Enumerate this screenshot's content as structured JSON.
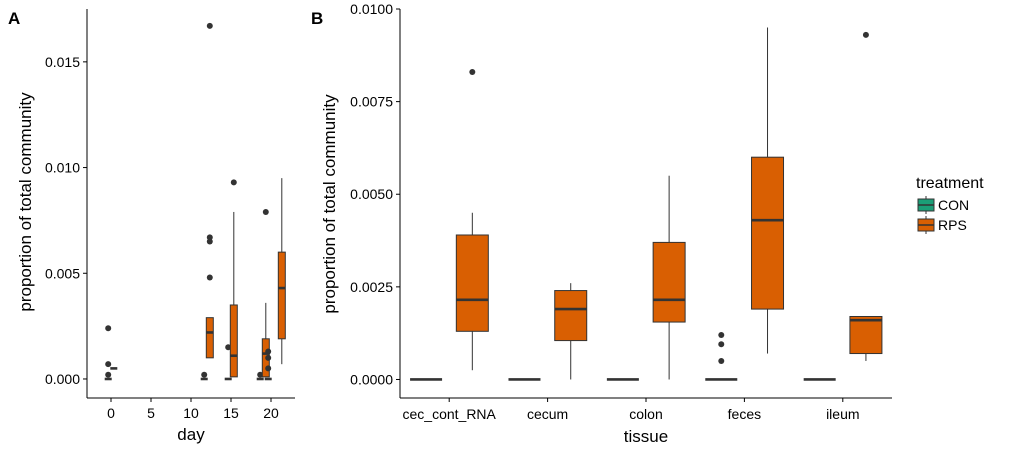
{
  "chart_data": [
    {
      "panel": "A",
      "type": "box",
      "xlabel": "day",
      "ylabel": "proportion of total community",
      "xlim": [
        -3,
        23
      ],
      "ylim": [
        -0.0009,
        0.0175
      ],
      "x_ticks": [
        0,
        5,
        10,
        15,
        20
      ],
      "y_ticks": [
        0.0,
        0.005,
        0.01,
        0.015
      ],
      "y_tick_labels": [
        "0.000",
        "0.005",
        "0.010",
        "0.015"
      ],
      "boxes": [
        {
          "day": 0,
          "treatment": "CON",
          "min": 0,
          "q1": 0,
          "median": 0,
          "q3": 0,
          "max": 0,
          "outliers": [
            0.0024,
            0.0007,
            0.0002
          ]
        },
        {
          "day": 0,
          "treatment": "RPS",
          "min": 0.0005,
          "q1": 0.0005,
          "median": 0.0005,
          "q3": 0.0005,
          "max": 0.0005,
          "outliers": []
        },
        {
          "day": 12,
          "treatment": "CON",
          "min": 0,
          "q1": 0,
          "median": 0,
          "q3": 0,
          "max": 0,
          "outliers": [
            0.0002
          ]
        },
        {
          "day": 12,
          "treatment": "RPS",
          "min": 0.001,
          "q1": 0.001,
          "median": 0.0022,
          "q3": 0.0029,
          "max": 0.0029,
          "outliers": [
            0.0167,
            0.0067,
            0.0065,
            0.0048
          ]
        },
        {
          "day": 15,
          "treatment": "CON",
          "min": 0,
          "q1": 0,
          "median": 0,
          "q3": 0,
          "max": 0,
          "outliers": [
            0.0015
          ]
        },
        {
          "day": 15,
          "treatment": "RPS",
          "min": 0.0001,
          "q1": 0.0001,
          "median": 0.0011,
          "q3": 0.0035,
          "max": 0.0079,
          "outliers": [
            0.0093
          ]
        },
        {
          "day": 19,
          "treatment": "CON",
          "min": 0,
          "q1": 0,
          "median": 0,
          "q3": 0,
          "max": 0,
          "outliers": [
            0.0002
          ]
        },
        {
          "day": 19,
          "treatment": "RPS",
          "min": 0.0001,
          "q1": 0.0001,
          "median": 0.0012,
          "q3": 0.0019,
          "max": 0.0036,
          "outliers": [
            0.0079
          ]
        },
        {
          "day": 20,
          "treatment": "CON",
          "min": 0,
          "q1": 0,
          "median": 0,
          "q3": 0,
          "max": 0,
          "outliers": [
            0.0013,
            0.001,
            0.0005
          ]
        },
        {
          "day": 21,
          "treatment": "RPS",
          "min": 0.0007,
          "q1": 0.0019,
          "median": 0.0043,
          "q3": 0.006,
          "max": 0.0095,
          "outliers": []
        }
      ]
    },
    {
      "panel": "B",
      "type": "box",
      "xlabel": "tissue",
      "ylabel": "proportion of total community",
      "categories": [
        "cec_cont_RNA",
        "cecum",
        "colon",
        "feces",
        "ileum"
      ],
      "ylim": [
        -0.0005,
        0.01
      ],
      "y_ticks": [
        0.0,
        0.0025,
        0.005,
        0.0075,
        0.01
      ],
      "y_tick_labels": [
        "0.0000",
        "0.0025",
        "0.0050",
        "0.0075",
        "0.0100"
      ],
      "boxes": [
        {
          "tissue": "cec_cont_RNA",
          "treatment": "CON",
          "min": 0,
          "q1": 0,
          "median": 0,
          "q3": 0,
          "max": 0,
          "outliers": []
        },
        {
          "tissue": "cec_cont_RNA",
          "treatment": "RPS",
          "min": 0.00025,
          "q1": 0.0013,
          "median": 0.00215,
          "q3": 0.0039,
          "max": 0.0045,
          "outliers": [
            0.0083
          ]
        },
        {
          "tissue": "cecum",
          "treatment": "CON",
          "min": 0,
          "q1": 0,
          "median": 0,
          "q3": 0,
          "max": 0,
          "outliers": []
        },
        {
          "tissue": "cecum",
          "treatment": "RPS",
          "min": 0.0,
          "q1": 0.00105,
          "median": 0.0019,
          "q3": 0.0024,
          "max": 0.0026,
          "outliers": []
        },
        {
          "tissue": "colon",
          "treatment": "CON",
          "min": 0,
          "q1": 0,
          "median": 0,
          "q3": 0,
          "max": 0,
          "outliers": []
        },
        {
          "tissue": "colon",
          "treatment": "RPS",
          "min": 0.0,
          "q1": 0.00155,
          "median": 0.00215,
          "q3": 0.0037,
          "max": 0.0055,
          "outliers": []
        },
        {
          "tissue": "feces",
          "treatment": "CON",
          "min": 0,
          "q1": 0,
          "median": 0,
          "q3": 0,
          "max": 0,
          "outliers": [
            0.0012,
            0.00095,
            0.0005
          ]
        },
        {
          "tissue": "feces",
          "treatment": "RPS",
          "min": 0.0007,
          "q1": 0.0019,
          "median": 0.0043,
          "q3": 0.006,
          "max": 0.0095,
          "outliers": []
        },
        {
          "tissue": "ileum",
          "treatment": "CON",
          "min": 0,
          "q1": 0,
          "median": 0,
          "q3": 0,
          "max": 0,
          "outliers": []
        },
        {
          "tissue": "ileum",
          "treatment": "RPS",
          "min": 0.0005,
          "q1": 0.0007,
          "median": 0.0016,
          "q3": 0.0017,
          "max": 0.0017,
          "outliers": [
            0.0093
          ]
        }
      ]
    }
  ],
  "panels": {
    "a": {
      "tag": "A",
      "xlabel": "day",
      "ylabel": "proportion of total community"
    },
    "b": {
      "tag": "B",
      "xlabel": "tissue",
      "ylabel": "proportion of total community"
    }
  },
  "legend": {
    "title": "treatment",
    "placement": "right",
    "items": [
      {
        "label": "CON",
        "color": "#1B9E77"
      },
      {
        "label": "RPS",
        "color": "#D95F02"
      }
    ]
  },
  "colors": {
    "CON": "#1B9E77",
    "RPS": "#D95F02",
    "stroke": "#333333",
    "axis": "#000000"
  }
}
